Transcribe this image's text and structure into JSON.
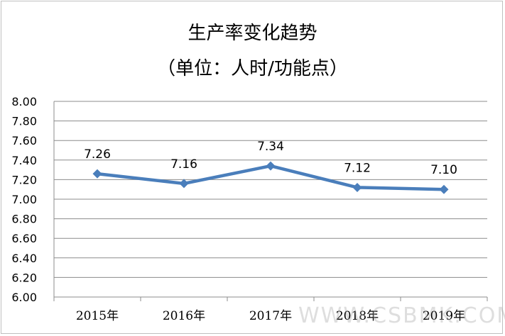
{
  "chart_data": {
    "type": "line",
    "title": "生产率变化趋势",
    "subtitle": "（单位：人时/功能点）",
    "categories": [
      "2015年",
      "2016年",
      "2017年",
      "2018年",
      "2019年"
    ],
    "values": [
      7.26,
      7.16,
      7.34,
      7.12,
      7.1
    ],
    "data_labels": [
      "7.26",
      "7.16",
      "7.34",
      "7.12",
      "7.10"
    ],
    "y_ticks": [
      "6.00",
      "6.20",
      "6.40",
      "6.60",
      "6.80",
      "7.00",
      "7.20",
      "7.40",
      "7.60",
      "7.80",
      "8.00"
    ],
    "ylim": [
      6.0,
      8.0
    ],
    "xlabel": "",
    "ylabel": "",
    "grid": true,
    "legend": "none",
    "line_color": "#4a7ebb",
    "grid_color": "#8c8c8c"
  },
  "watermark": "WWW.CSBMK.COM"
}
